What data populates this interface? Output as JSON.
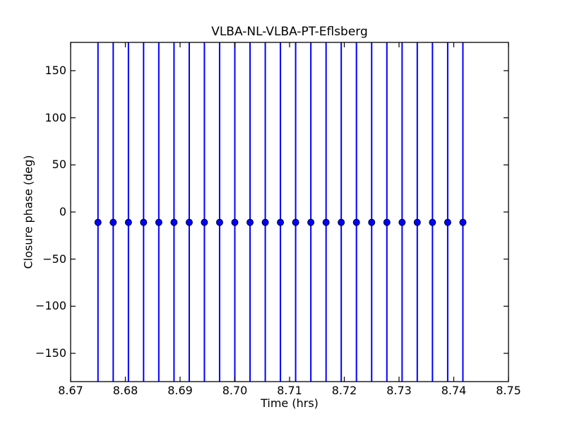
{
  "figure": {
    "background_color": "#ffffff",
    "axis_color": "#000000",
    "accent_color": "#0000ff"
  },
  "chart_data": {
    "type": "scatter",
    "title": "VLBA-NL-VLBA-PT-Eflsberg",
    "xlabel": "Time (hrs)",
    "ylabel": "Closure phase (deg)",
    "xlim": [
      8.67,
      8.75
    ],
    "ylim": [
      -180,
      180
    ],
    "grid": false,
    "legend": "none",
    "xticks": [
      8.67,
      8.68,
      8.69,
      8.7,
      8.71,
      8.72,
      8.73,
      8.74,
      8.75
    ],
    "xtick_labels": [
      "8.67",
      "8.68",
      "8.69",
      "8.70",
      "8.71",
      "8.72",
      "8.73",
      "8.74",
      "8.75"
    ],
    "yticks": [
      150,
      100,
      50,
      0,
      -50,
      -100,
      -150
    ],
    "ytick_labels": [
      "150",
      "100",
      "50",
      "0",
      "−50",
      "−100",
      "−150"
    ],
    "series": [
      {
        "name": "closure phase",
        "marker": "circle",
        "marker_color": "#0000ff",
        "marker_edge_color": "#000022",
        "errorbar_color": "#0000ff",
        "errorbars_span_full_axis": true,
        "x": [
          8.675,
          8.67778,
          8.68056,
          8.68333,
          8.68611,
          8.68889,
          8.69167,
          8.69444,
          8.69722,
          8.7,
          8.70278,
          8.70556,
          8.70833,
          8.71111,
          8.71389,
          8.71667,
          8.71944,
          8.72222,
          8.725,
          8.72778,
          8.73056,
          8.73333,
          8.73611,
          8.73889,
          8.74167
        ],
        "y": [
          -11,
          -11,
          -11,
          -11,
          -11,
          -11,
          -11,
          -11,
          -11,
          -11,
          -11,
          -11,
          -11,
          -11,
          -11,
          -11,
          -11,
          -11,
          -11,
          -11,
          -11,
          -11,
          -11,
          -11,
          -11
        ]
      }
    ]
  }
}
